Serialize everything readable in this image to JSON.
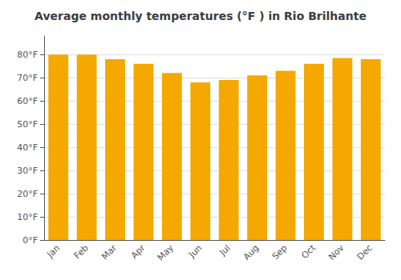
{
  "chart_data": {
    "type": "bar",
    "title": "Average monthly temperatures (°F ) in Rio Brilhante",
    "categories": [
      "Jan",
      "Feb",
      "Mar",
      "Apr",
      "May",
      "Jun",
      "Jul",
      "Aug",
      "Sep",
      "Oct",
      "Nov",
      "Dec"
    ],
    "values": [
      80,
      80,
      78,
      76,
      72,
      68,
      69,
      71,
      73,
      76,
      78.5,
      78
    ],
    "color": "#F5A800",
    "ylim": [
      0,
      88
    ],
    "yticks": [
      {
        "value": 0,
        "label": "0°F"
      },
      {
        "value": 10,
        "label": "10°F"
      },
      {
        "value": 20,
        "label": "20°F"
      },
      {
        "value": 30,
        "label": "30°F"
      },
      {
        "value": 40,
        "label": "40°F"
      },
      {
        "value": 50,
        "label": "50°F"
      },
      {
        "value": 60,
        "label": "60°F"
      },
      {
        "value": 70,
        "label": "70°F"
      },
      {
        "value": 80,
        "label": "80°F"
      }
    ],
    "grid": true
  }
}
